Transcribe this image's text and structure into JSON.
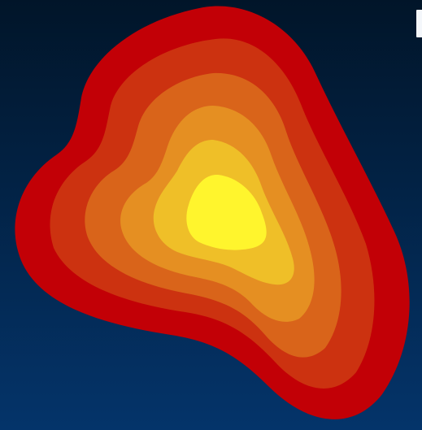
{
  "colors": {
    "background_top": "#011529",
    "background_bottom": "#04346a",
    "levels": [
      "#c20006",
      "#cc3210",
      "#d9641a",
      "#e58f22",
      "#efbf28",
      "#fff52d"
    ],
    "edge_fragment": "#f4f7fb"
  }
}
